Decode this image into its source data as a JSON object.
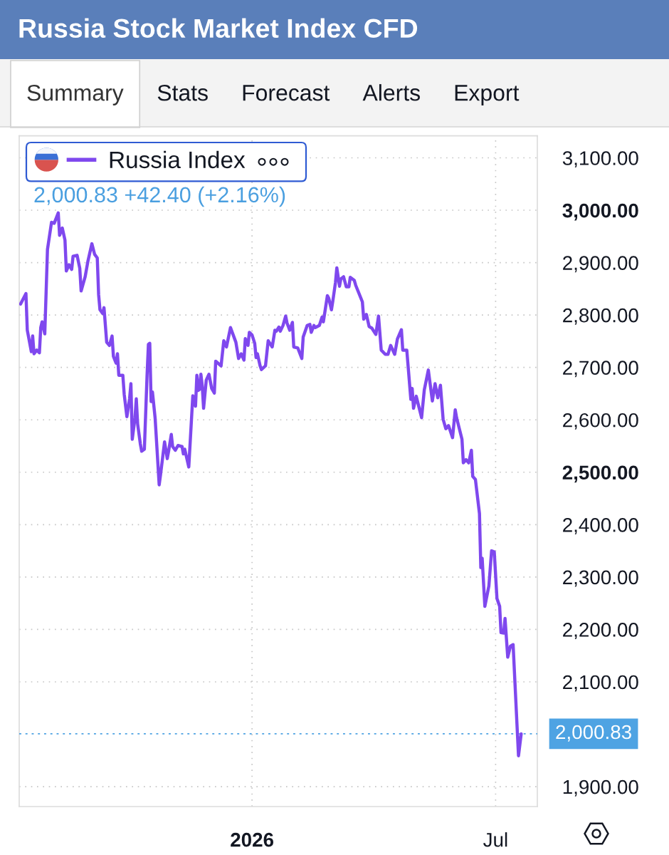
{
  "chart_data": {
    "type": "line",
    "title": "Russia Stock Market Index CFD",
    "subtitle": "2,000.83 +42.40 (+2.16%)",
    "annotations": [
      "Summary",
      "Stats",
      "Forecast",
      "Alerts",
      "Export"
    ],
    "x": [
      "2025-07-13",
      "2025-07-17",
      "2025-07-18",
      "2025-07-21",
      "2025-07-22",
      "2025-07-23",
      "2025-07-25",
      "2025-07-27",
      "2025-07-28",
      "2025-07-29",
      "2025-07-31",
      "2025-08-02",
      "2025-08-05",
      "2025-08-07",
      "2025-08-10",
      "2025-08-11",
      "2025-08-13",
      "2025-08-15",
      "2025-08-16",
      "2025-08-18",
      "2025-08-20",
      "2025-08-21",
      "2025-08-24",
      "2025-08-26",
      "2025-08-27",
      "2025-08-30",
      "2025-09-01",
      "2025-09-04",
      "2025-09-06",
      "2025-09-08",
      "2025-09-09",
      "2025-09-10",
      "2025-09-12",
      "2025-09-13",
      "2025-09-15",
      "2025-09-17",
      "2025-09-19",
      "2025-09-20",
      "2025-09-22",
      "2025-09-23",
      "2025-09-24",
      "2025-09-27",
      "2025-09-28",
      "2025-09-30",
      "2025-10-02",
      "2025-10-03",
      "2025-10-04",
      "2025-10-06",
      "2025-10-07",
      "2025-10-08",
      "2025-10-10",
      "2025-10-11",
      "2025-10-13",
      "2025-10-15",
      "2025-10-16",
      "2025-10-17",
      "2025-10-18",
      "2025-10-19",
      "2025-10-21",
      "2025-10-24",
      "2025-10-25",
      "2025-10-28",
      "2025-10-30",
      "2025-10-31",
      "2025-11-02",
      "2025-11-03",
      "2025-11-05",
      "2025-11-07",
      "2025-11-10",
      "2025-11-11",
      "2025-11-12",
      "2025-11-15",
      "2025-11-18",
      "2025-11-20",
      "2025-11-21",
      "2025-11-22",
      "2025-11-23",
      "2025-11-24",
      "2025-11-25",
      "2025-11-26",
      "2025-11-28",
      "2025-11-30",
      "2025-12-02",
      "2025-12-04",
      "2025-12-05",
      "2025-12-09",
      "2025-12-11",
      "2025-12-13",
      "2025-12-16",
      "2025-12-20",
      "2025-12-22",
      "2025-12-24",
      "2025-12-26",
      "2025-12-27",
      "2025-12-29",
      "2025-12-30",
      "2026-01-01",
      "2026-01-03",
      "2026-01-04",
      "2026-01-05",
      "2026-01-07",
      "2026-01-08",
      "2026-01-11",
      "2026-01-13",
      "2026-01-16",
      "2026-01-18",
      "2026-01-19",
      "2026-01-21",
      "2026-01-22",
      "2026-01-24",
      "2026-01-26",
      "2026-01-27",
      "2026-01-29",
      "2026-01-31",
      "2026-02-01",
      "2026-02-04",
      "2026-02-07",
      "2026-02-08",
      "2026-02-11",
      "2026-02-13",
      "2026-02-14",
      "2026-02-16",
      "2026-02-17",
      "2026-02-20",
      "2026-02-22",
      "2026-02-23",
      "2026-02-26",
      "2026-02-27",
      "2026-03-01",
      "2026-03-02",
      "2026-03-04",
      "2026-03-05",
      "2026-03-07",
      "2026-03-08",
      "2026-03-10",
      "2026-03-12",
      "2026-03-14",
      "2026-03-15",
      "2026-03-18",
      "2026-03-19",
      "2026-03-24",
      "2026-03-25",
      "2026-03-27",
      "2026-03-29",
      "2026-03-31",
      "2026-04-03",
      "2026-04-05",
      "2026-04-07",
      "2026-04-10",
      "2026-04-12",
      "2026-04-14",
      "2026-04-17",
      "2026-04-19",
      "2026-04-22",
      "2026-04-23",
      "2026-04-26",
      "2026-04-29",
      "2026-04-30",
      "2026-05-01",
      "2026-05-03",
      "2026-05-07",
      "2026-05-09",
      "2026-05-12",
      "2026-05-15",
      "2026-05-17",
      "2026-05-19",
      "2026-05-21",
      "2026-05-23",
      "2026-05-25",
      "2026-05-27",
      "2026-05-30",
      "2026-06-01",
      "2026-06-02",
      "2026-06-06",
      "2026-06-07",
      "2026-06-09",
      "2026-06-11",
      "2026-06-13",
      "2026-06-14",
      "2026-06-16",
      "2026-06-19",
      "2026-06-20",
      "2026-06-21",
      "2026-06-23",
      "2026-06-26",
      "2026-06-28",
      "2026-06-30",
      "2026-07-02",
      "2026-07-04",
      "2026-07-05",
      "2026-07-07",
      "2026-07-08",
      "2026-07-10",
      "2026-07-12",
      "2026-07-14",
      "2026-07-18",
      "2026-07-20"
    ],
    "series": [
      {
        "name": "Russia Index",
        "color": "#7f48ee",
        "values": [
          2821,
          2841,
          2771,
          2730,
          2760,
          2726,
          2733,
          2728,
          2776,
          2787,
          2764,
          2925,
          2977,
          2975,
          2995,
          2952,
          2966,
          2943,
          2884,
          2896,
          2887,
          2912,
          2914,
          2889,
          2846,
          2873,
          2902,
          2936,
          2916,
          2909,
          2839,
          2810,
          2803,
          2814,
          2748,
          2742,
          2760,
          2721,
          2708,
          2726,
          2685,
          2685,
          2649,
          2606,
          2640,
          2669,
          2563,
          2603,
          2640,
          2592,
          2554,
          2540,
          2544,
          2685,
          2744,
          2746,
          2635,
          2653,
          2603,
          2476,
          2495,
          2558,
          2526,
          2540,
          2572,
          2549,
          2542,
          2551,
          2549,
          2535,
          2544,
          2510,
          2646,
          2626,
          2685,
          2656,
          2658,
          2687,
          2665,
          2622,
          2676,
          2687,
          2660,
          2651,
          2712,
          2703,
          2751,
          2739,
          2776,
          2748,
          2717,
          2726,
          2714,
          2755,
          2742,
          2767,
          2762,
          2746,
          2719,
          2726,
          2703,
          2696,
          2703,
          2751,
          2739,
          2771,
          2769,
          2777,
          2769,
          2780,
          2798,
          2785,
          2771,
          2786,
          2739,
          2737,
          2717,
          2758,
          2780,
          2782,
          2767,
          2780,
          2776,
          2780,
          2796,
          2787,
          2837,
          2832,
          2810,
          2826,
          2862,
          2890,
          2855,
          2869,
          2873,
          2854,
          2854,
          2872,
          2866,
          2857,
          2825,
          2792,
          2801,
          2778,
          2775,
          2763,
          2798,
          2733,
          2725,
          2725,
          2742,
          2725,
          2754,
          2772,
          2733,
          2733,
          2639,
          2660,
          2622,
          2645,
          2604,
          2657,
          2695,
          2636,
          2669,
          2642,
          2666,
          2601,
          2583,
          2589,
          2566,
          2619,
          2604,
          2563,
          2518,
          2524,
          2518,
          2542,
          2492,
          2486,
          2421,
          2318,
          2336,
          2244,
          2283,
          2350,
          2348,
          2259,
          2244,
          2194,
          2193,
          2221,
          2147,
          2168,
          2171,
          1959,
          2000.83
        ]
      }
    ],
    "xlim": [
      "2025-07-12",
      "2026-08-01"
    ],
    "ylim": [
      1862,
      3142
    ],
    "xticks": [
      {
        "value": "2026-01-01",
        "label": "2026"
      },
      {
        "value": "2026-07-01",
        "label": "Jul"
      }
    ],
    "yticks": [
      {
        "value": 1900,
        "label": "1,900.00"
      },
      {
        "value": 2100,
        "label": "2,100.00"
      },
      {
        "value": 2200,
        "label": "2,200.00"
      },
      {
        "value": 2300,
        "label": "2,300.00"
      },
      {
        "value": 2400,
        "label": "2,400.00"
      },
      {
        "value": 2500,
        "label": "2,500.00"
      },
      {
        "value": 2600,
        "label": "2,600.00"
      },
      {
        "value": 2700,
        "label": "2,700.00"
      },
      {
        "value": 2800,
        "label": "2,800.00"
      },
      {
        "value": 2900,
        "label": "2,900.00"
      },
      {
        "value": 3000,
        "label": "3,000.00"
      },
      {
        "value": 3100,
        "label": "3,100.00"
      }
    ],
    "ref_lines": [
      {
        "axis": "y",
        "value": 2000.83,
        "label": "2,000.83",
        "color": "#4ea3e3",
        "line_style": "dotted"
      }
    ],
    "grid": true,
    "legend": "top left"
  }
}
